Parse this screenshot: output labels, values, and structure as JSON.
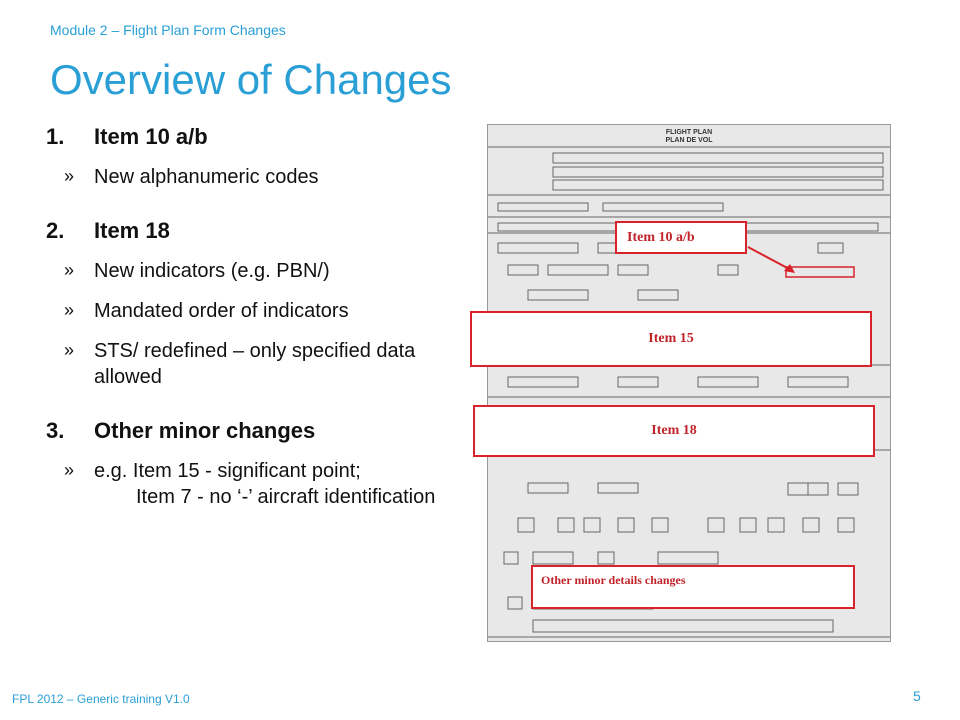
{
  "header": {
    "module": "Module 2 – Flight Plan Form Changes",
    "title": "Overview of Changes"
  },
  "items": [
    {
      "number": "1.",
      "label": "Item 10 a/b",
      "subs": [
        "New alphanumeric codes"
      ]
    },
    {
      "number": "2.",
      "label": "Item 18",
      "subs": [
        "New indicators (e.g. PBN/)",
        "Mandated order of indicators",
        "STS/ redefined – only specified data allowed"
      ]
    },
    {
      "number": "3.",
      "label": "Other minor changes",
      "subs": [
        "e.g. Item 15 - significant point;",
        "Item 7 - no ‘-’ aircraft identification"
      ]
    }
  ],
  "bullet": "»",
  "form": {
    "title": "FLIGHT PLAN",
    "subtitle": "PLAN DE VOL"
  },
  "callouts": {
    "item10": "Item 10 a/b",
    "item15": "Item 15",
    "item18": "Item 18",
    "minor": "Other minor details changes"
  },
  "footer": {
    "text": "FPL 2012 – Generic training V1.0",
    "page": "5"
  },
  "colors": {
    "accent": "#2a9fd6",
    "callout_red": "#d8232a"
  }
}
